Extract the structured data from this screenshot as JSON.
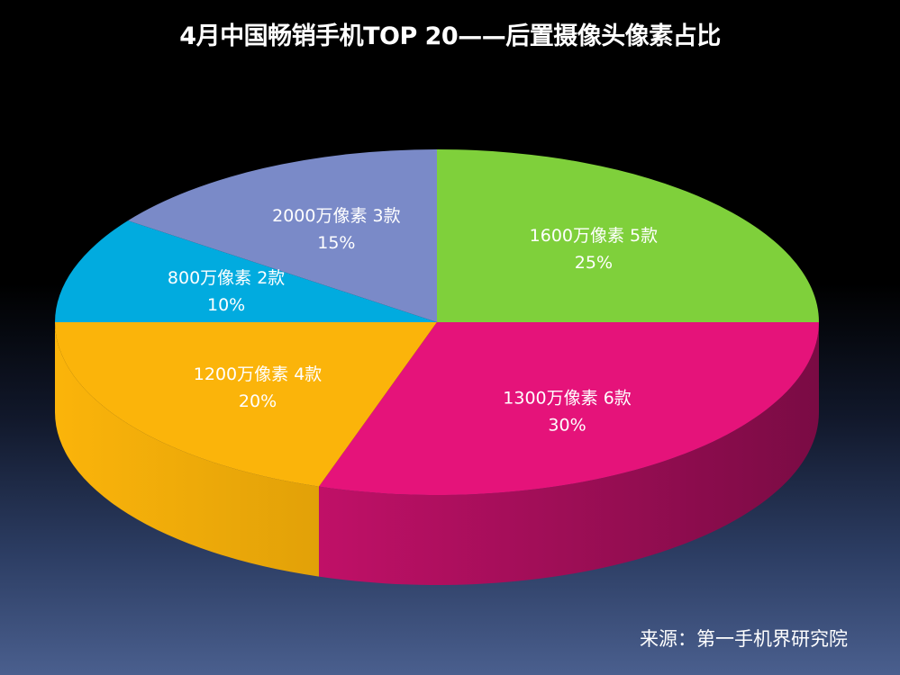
{
  "title": "4月中国畅销手机TOP 20——后置摄像头像素占比",
  "source": "来源：第一手机界研究院",
  "chart_data": {
    "type": "pie",
    "three_d": true,
    "title": "4月中国畅销手机TOP 20——后置摄像头像素占比",
    "slices": [
      {
        "label": "1600万像素 5款",
        "percent_label": "25%",
        "value": 25,
        "color": "#7fd03b",
        "side_color": "#4e8a1f"
      },
      {
        "label": "1300万像素  6款",
        "percent_label": "30%",
        "value": 30,
        "color": "#e5137a",
        "side_color": "#7a0b44"
      },
      {
        "label": "1200万像素  4款",
        "percent_label": "20%",
        "value": 20,
        "color": "#fbb40a",
        "side_color": "#b27d05"
      },
      {
        "label": "800万像素  2款",
        "percent_label": "10%",
        "value": 10,
        "color": "#01abdf",
        "side_color": "#01708f"
      },
      {
        "label": "2000万像素 3款",
        "percent_label": "15%",
        "value": 15,
        "color": "#7a8ac8",
        "side_color": "#4b5688"
      }
    ]
  }
}
